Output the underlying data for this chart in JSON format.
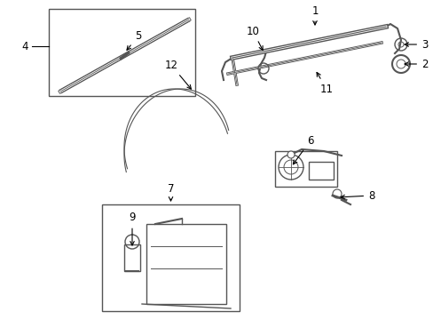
{
  "bg_color": "#ffffff",
  "line_color": "#555555",
  "label_color": "#000000",
  "fig_width": 4.89,
  "fig_height": 3.6,
  "dpi": 100
}
